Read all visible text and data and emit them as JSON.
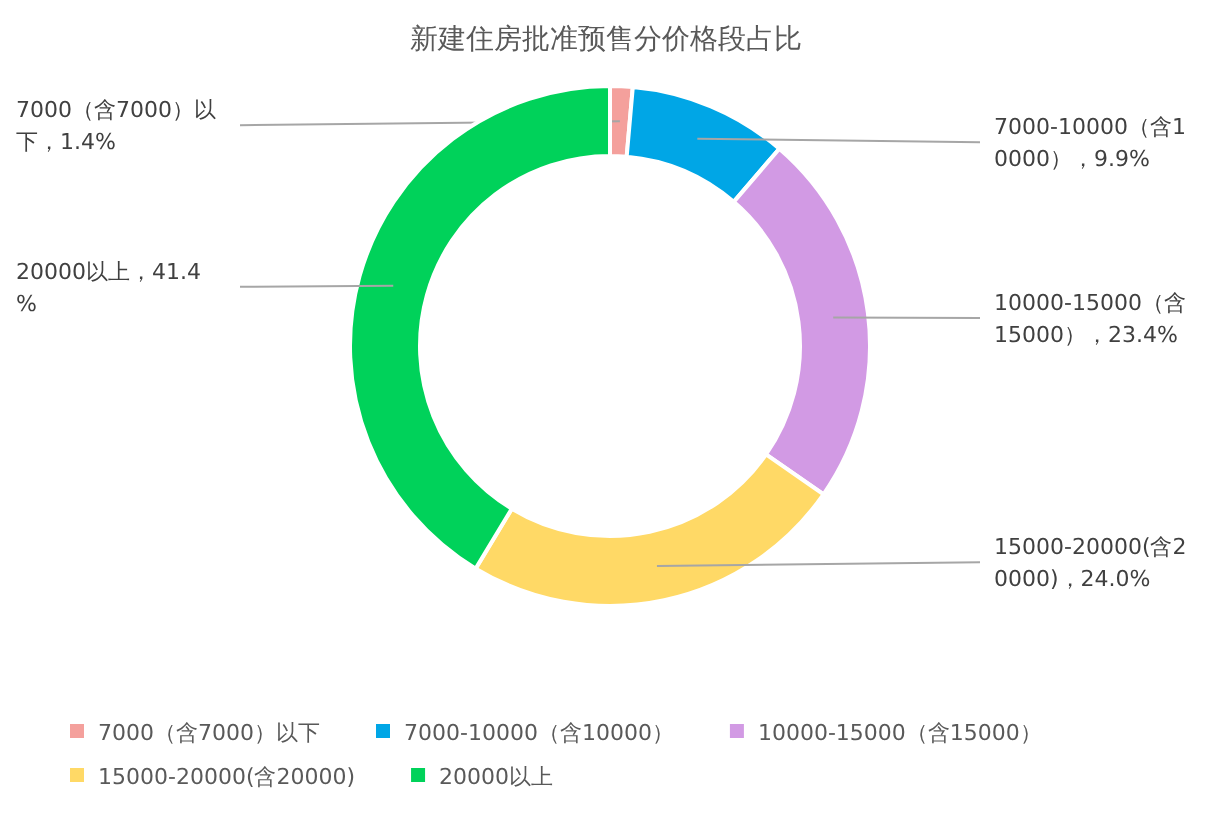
{
  "chart_data": {
    "type": "donut",
    "title": "新建住房批准预售分价格段占比",
    "categories": [
      "7000（含7000）以下",
      "7000-10000（含10000）",
      "10000-15000（含15000）",
      "15000-20000(含20000)",
      "20000以上"
    ],
    "values": [
      1.4,
      9.9,
      23.4,
      24.0,
      41.4
    ],
    "colors": [
      "#f4a09c",
      "#00a6e6",
      "#d29ae4",
      "#ffd966",
      "#00d25a"
    ],
    "value_labels": [
      "7000（含7000）以下，1.4%",
      "7000-10000（含10000），9.9%",
      "10000-15000（含15000），23.4%",
      "15000-20000(含20000)，24.0%",
      "20000以上，41.4%"
    ],
    "legend": "bottom"
  }
}
